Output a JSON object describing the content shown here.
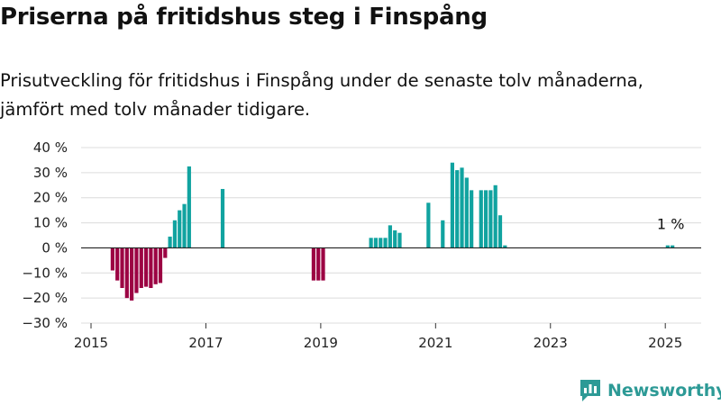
{
  "header": {
    "title": "Priserna på fritidshus steg i Finspång",
    "subtitle_line1": "Prisutveckling för fritidshus i Finspång under de senaste tolv månaderna,",
    "subtitle_line2": "jämfört med tolv månader tidigare."
  },
  "brand": {
    "name": "Newsworthy",
    "icon": "newsworthy-logo-icon",
    "color": "#2d9a96"
  },
  "colors": {
    "positive": "#11a3a0",
    "negative": "#9c0343",
    "grid": "#dcdcdc",
    "zero_line": "#222222"
  },
  "chart_data": {
    "type": "bar",
    "title": "Priserna på fritidshus steg i Finspång",
    "ylim": [
      -30,
      40
    ],
    "yticks": [
      40,
      30,
      20,
      10,
      0,
      -10,
      -20,
      -30
    ],
    "ytick_labels": [
      "40 %",
      "30 %",
      "20 %",
      "10 %",
      "0 %",
      "−10 %",
      "−20 %",
      "−30 %"
    ],
    "xlim": [
      "2015-01",
      "2025-12"
    ],
    "xtick_labels": [
      "2015",
      "2017",
      "2019",
      "2021",
      "2023",
      "2025"
    ],
    "grid": true,
    "annotation": {
      "text": "1 %",
      "x": "2025-02",
      "y": 1
    },
    "points": [
      {
        "x": "2015-05",
        "y": -9
      },
      {
        "x": "2015-06",
        "y": -13
      },
      {
        "x": "2015-07",
        "y": -16
      },
      {
        "x": "2015-08",
        "y": -20
      },
      {
        "x": "2015-09",
        "y": -21
      },
      {
        "x": "2015-10",
        "y": -18
      },
      {
        "x": "2015-11",
        "y": -16
      },
      {
        "x": "2015-12",
        "y": -15.5
      },
      {
        "x": "2016-01",
        "y": -16
      },
      {
        "x": "2016-02",
        "y": -14.5
      },
      {
        "x": "2016-03",
        "y": -14
      },
      {
        "x": "2016-04",
        "y": -4
      },
      {
        "x": "2016-05",
        "y": 4.5
      },
      {
        "x": "2016-06",
        "y": 11
      },
      {
        "x": "2016-07",
        "y": 15
      },
      {
        "x": "2016-08",
        "y": 17.5
      },
      {
        "x": "2016-09",
        "y": 32.5
      },
      {
        "x": "2017-04",
        "y": 23.5
      },
      {
        "x": "2018-11",
        "y": -13
      },
      {
        "x": "2018-12",
        "y": -13
      },
      {
        "x": "2019-01",
        "y": -13
      },
      {
        "x": "2019-11",
        "y": 4
      },
      {
        "x": "2019-12",
        "y": 4
      },
      {
        "x": "2020-01",
        "y": 4
      },
      {
        "x": "2020-02",
        "y": 4
      },
      {
        "x": "2020-03",
        "y": 9
      },
      {
        "x": "2020-04",
        "y": 7
      },
      {
        "x": "2020-05",
        "y": 6
      },
      {
        "x": "2020-11",
        "y": 18
      },
      {
        "x": "2021-02",
        "y": 11
      },
      {
        "x": "2021-04",
        "y": 34
      },
      {
        "x": "2021-05",
        "y": 31
      },
      {
        "x": "2021-06",
        "y": 32
      },
      {
        "x": "2021-07",
        "y": 28
      },
      {
        "x": "2021-08",
        "y": 23
      },
      {
        "x": "2021-10",
        "y": 23
      },
      {
        "x": "2021-11",
        "y": 23
      },
      {
        "x": "2021-12",
        "y": 23
      },
      {
        "x": "2022-01",
        "y": 25
      },
      {
        "x": "2022-02",
        "y": 13
      },
      {
        "x": "2022-03",
        "y": 1
      },
      {
        "x": "2025-01",
        "y": 1
      },
      {
        "x": "2025-02",
        "y": 1
      }
    ]
  }
}
